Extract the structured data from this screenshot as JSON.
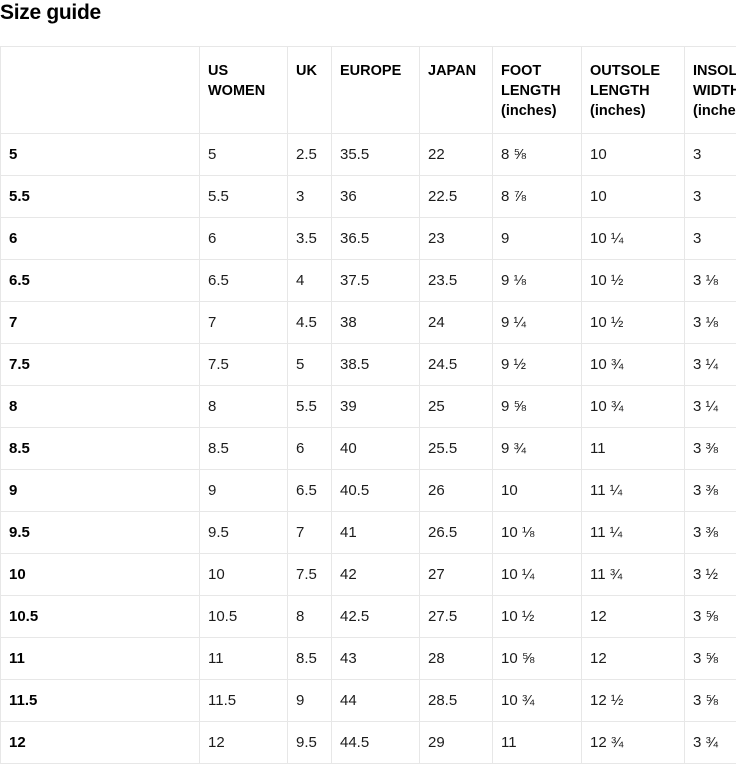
{
  "page": {
    "title": "Size guide"
  },
  "colors": {
    "background": "#ffffff",
    "border": "#e7e7e7",
    "heading_text": "#000000",
    "body_text": "#1c1c1c"
  },
  "table": {
    "columns": [
      "",
      "US WOMEN",
      "UK",
      "EUROPE",
      "JAPAN",
      "FOOT LENGTH (inches)",
      "OUTSOLE LENGTH (inches)",
      "INSOLE WIDTH (inches)"
    ],
    "rows": [
      [
        "5",
        "5",
        "2.5",
        "35.5",
        "22",
        "8 ⅝",
        "10",
        "3"
      ],
      [
        "5.5",
        "5.5",
        "3",
        "36",
        "22.5",
        "8 ⅞",
        "10",
        "3"
      ],
      [
        "6",
        "6",
        "3.5",
        "36.5",
        "23",
        "9",
        "10 ¼",
        "3"
      ],
      [
        "6.5",
        "6.5",
        "4",
        "37.5",
        "23.5",
        "9 ⅛",
        "10 ½",
        "3 ⅛"
      ],
      [
        "7",
        "7",
        "4.5",
        "38",
        "24",
        "9 ¼",
        "10 ½",
        "3 ⅛"
      ],
      [
        "7.5",
        "7.5",
        "5",
        "38.5",
        "24.5",
        "9 ½",
        "10 ¾",
        "3 ¼"
      ],
      [
        "8",
        "8",
        "5.5",
        "39",
        "25",
        "9 ⅝",
        "10 ¾",
        "3 ¼"
      ],
      [
        "8.5",
        "8.5",
        "6",
        "40",
        "25.5",
        "9 ¾",
        "11",
        "3 ⅜"
      ],
      [
        "9",
        "9",
        "6.5",
        "40.5",
        "26",
        "10",
        "11 ¼",
        "3 ⅜"
      ],
      [
        "9.5",
        "9.5",
        "7",
        "41",
        "26.5",
        "10 ⅛",
        "11 ¼",
        "3 ⅜"
      ],
      [
        "10",
        "10",
        "7.5",
        "42",
        "27",
        "10 ¼",
        "11 ¾",
        "3 ½"
      ],
      [
        "10.5",
        "10.5",
        "8",
        "42.5",
        "27.5",
        "10 ½",
        "12",
        "3 ⅝"
      ],
      [
        "11",
        "11",
        "8.5",
        "43",
        "28",
        "10 ⅝",
        "12",
        "3 ⅝"
      ],
      [
        "11.5",
        "11.5",
        "9",
        "44",
        "28.5",
        "10 ¾",
        "12 ½",
        "3 ⅝"
      ],
      [
        "12",
        "12",
        "9.5",
        "44.5",
        "29",
        "11",
        "12 ¾",
        "3 ¾"
      ]
    ]
  }
}
